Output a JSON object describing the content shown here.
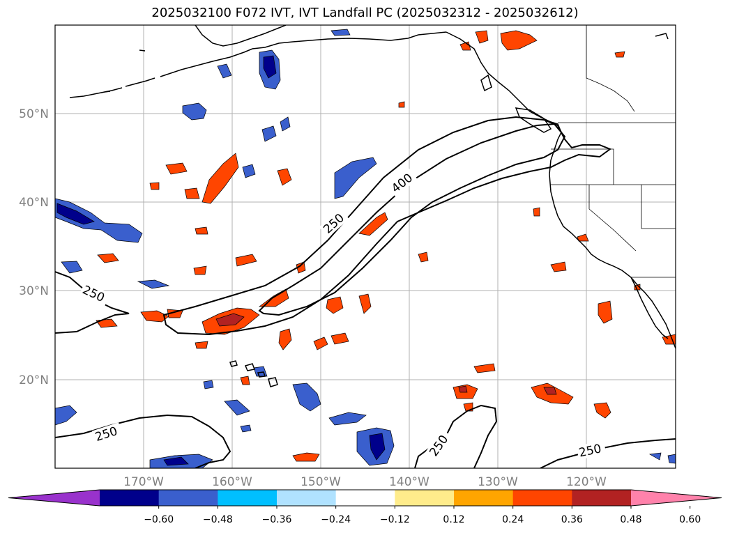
{
  "title": "2025032100 F072 IVT, IVT Landfall PC (2025032312 - 2025032612)",
  "lat_labels": [
    "50°N",
    "40°N",
    "30°N",
    "20°N"
  ],
  "lon_labels": [
    "170°W",
    "160°W",
    "150°W",
    "140°W",
    "130°W",
    "120°W"
  ],
  "contour_labels": [
    "250",
    "400",
    "250",
    "250",
    "250",
    "250"
  ],
  "colorbar": {
    "ticks": [
      "−0.60",
      "−0.48",
      "−0.36",
      "−0.24",
      "−0.12",
      "0.12",
      "0.24",
      "0.36",
      "0.48",
      "0.60"
    ],
    "colors": [
      "#9932cc",
      "#00008b",
      "#3a5fcd",
      "#00bfff",
      "#b0e2ff",
      "#ffffff",
      "#ffec8b",
      "#ffa500",
      "#ff4500",
      "#b22222",
      "#ff82ab"
    ]
  },
  "colors": {
    "neg_dark": "#00008b",
    "neg_mid": "#3a5fcd",
    "neg_light": "#00bfff",
    "pos_light": "#ffec8b",
    "pos_mid": "#ffa500",
    "pos_strong": "#ff4500",
    "pos_dark": "#b22222"
  }
}
